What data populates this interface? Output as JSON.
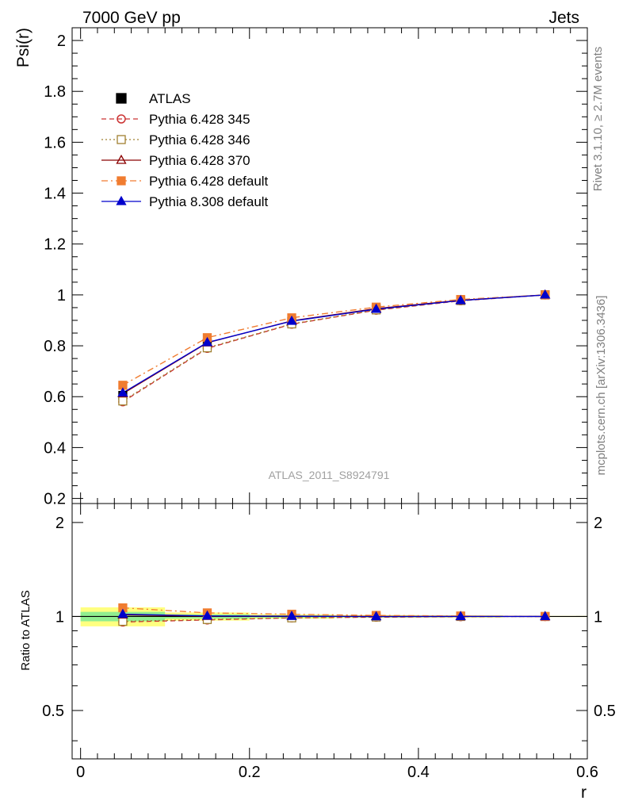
{
  "header": {
    "left_title": "7000 GeV pp",
    "right_title": "Jets"
  },
  "side_labels": {
    "rivet": "Rivet 3.1.10, ≥ 2.7M events",
    "mcplots": "mcplots.cern.ch [arXiv:1306.3436]"
  },
  "watermark": "ATLAS_2011_S8924791",
  "chart_data": [
    {
      "type": "line",
      "panel": "main",
      "ylabel": "Psi(r)",
      "xlabel": "",
      "xlim": [
        -0.01,
        0.6
      ],
      "ylim": [
        0.18,
        2.05
      ],
      "y_ticks": [
        0.2,
        0.4,
        0.6,
        0.8,
        1,
        1.2,
        1.4,
        1.6,
        1.8,
        2
      ],
      "y_tick_labels": [
        "0.2",
        "0.4",
        "0.6",
        "0.8",
        "1",
        "1.2",
        "1.4",
        "1.6",
        "1.8",
        "2"
      ],
      "legend_position": "top-left",
      "x": [
        0.05,
        0.15,
        0.25,
        0.35,
        0.45,
        0.55
      ],
      "series": [
        {
          "name": "ATLAS",
          "color": "#000000",
          "marker": "filled-square",
          "line": "none",
          "values": [
            0.605,
            0.81,
            0.895,
            0.945,
            0.978,
            1.0
          ]
        },
        {
          "name": "Pythia 6.428 345",
          "color": "#cc3333",
          "marker": "open-circle",
          "line": "dashed",
          "values": [
            0.58,
            0.79,
            0.885,
            0.94,
            0.977,
            1.0
          ]
        },
        {
          "name": "Pythia 6.428 346",
          "color": "#a08030",
          "marker": "open-square",
          "line": "dotted",
          "values": [
            0.583,
            0.792,
            0.886,
            0.941,
            0.978,
            1.0
          ]
        },
        {
          "name": "Pythia 6.428 370",
          "color": "#8b0000",
          "marker": "open-triangle",
          "line": "solid",
          "values": [
            0.612,
            0.812,
            0.898,
            0.946,
            0.979,
            1.0
          ]
        },
        {
          "name": "Pythia 6.428 default",
          "color": "#f07c30",
          "marker": "filled-square",
          "line": "dashdot",
          "values": [
            0.645,
            0.832,
            0.91,
            0.952,
            0.982,
            1.0
          ]
        },
        {
          "name": "Pythia 8.308 default",
          "color": "#0000cc",
          "marker": "filled-triangle",
          "line": "solid",
          "values": [
            0.615,
            0.813,
            0.897,
            0.944,
            0.978,
            1.0
          ]
        }
      ]
    },
    {
      "type": "line",
      "panel": "ratio",
      "ylabel": "Ratio to ATLAS",
      "xlabel": "r",
      "xlim": [
        -0.01,
        0.6
      ],
      "ylim": [
        0.35,
        2.3
      ],
      "y_ticks": [
        0.5,
        1,
        2
      ],
      "y_tick_labels": [
        "0.5",
        "1",
        "2"
      ],
      "x_ticks": [
        0,
        0.2,
        0.4,
        0.6
      ],
      "x_tick_labels": [
        "0",
        "0.2",
        "0.4",
        "0.6"
      ],
      "x": [
        0.05,
        0.15,
        0.25,
        0.35,
        0.45,
        0.55
      ],
      "band_green": [
        0.035,
        0.015,
        0.008,
        0.005,
        0.004,
        0.002
      ],
      "band_yellow": [
        0.07,
        0.03,
        0.016,
        0.01,
        0.008,
        0.004
      ],
      "series": [
        {
          "name": "Pythia 6.428 345",
          "color": "#cc3333",
          "values": [
            0.96,
            0.975,
            0.99,
            0.995,
            0.999,
            1.0
          ]
        },
        {
          "name": "Pythia 6.428 346",
          "color": "#a08030",
          "values": [
            0.965,
            0.978,
            0.99,
            0.996,
            1.0,
            1.0
          ]
        },
        {
          "name": "Pythia 6.428 370",
          "color": "#8b0000",
          "values": [
            1.012,
            1.002,
            1.003,
            1.001,
            1.001,
            1.0
          ]
        },
        {
          "name": "Pythia 6.428 default",
          "color": "#f07c30",
          "values": [
            1.066,
            1.027,
            1.017,
            1.008,
            1.004,
            1.0
          ]
        },
        {
          "name": "Pythia 8.308 default",
          "color": "#0000cc",
          "values": [
            1.017,
            1.004,
            1.002,
            0.999,
            1.0,
            1.0
          ]
        }
      ]
    }
  ]
}
